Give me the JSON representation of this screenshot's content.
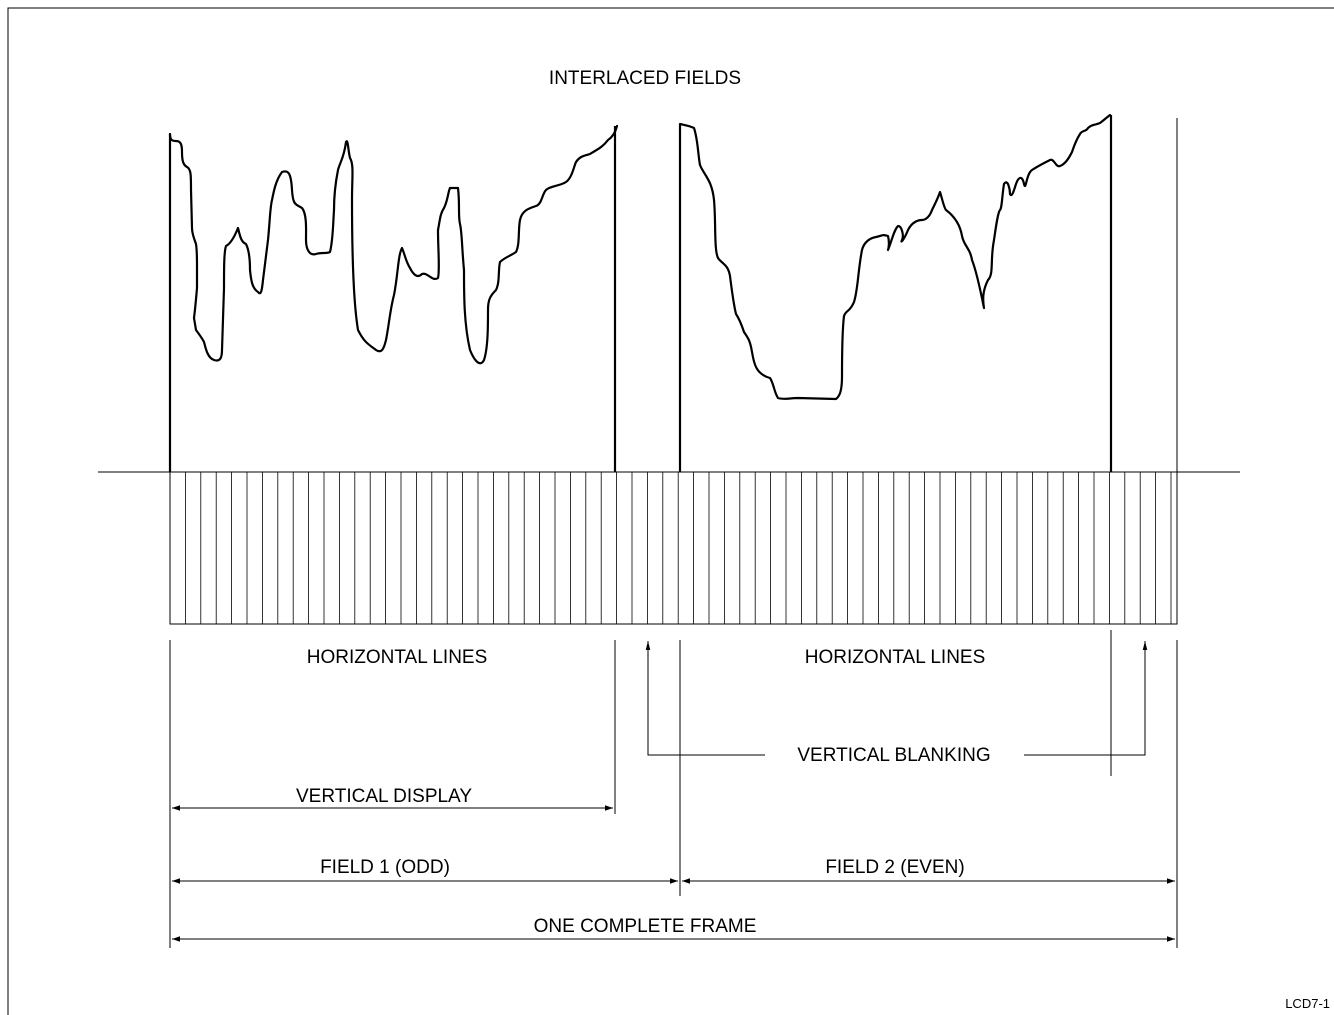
{
  "title": "INTERLACED FIELDS",
  "labels": {
    "horizontal_lines_1": "HORIZONTAL LINES",
    "horizontal_lines_2": "HORIZONTAL LINES",
    "vertical_blanking": "VERTICAL BLANKING",
    "vertical_display": "VERTICAL DISPLAY",
    "field_1": "FIELD 1 (ODD)",
    "field_2": "FIELD 2 (EVEN)",
    "complete_frame": "ONE COMPLETE FRAME"
  },
  "figure_id": "LCD7-1",
  "colors": {
    "ink": "#000000",
    "background": "#ffffff"
  }
}
